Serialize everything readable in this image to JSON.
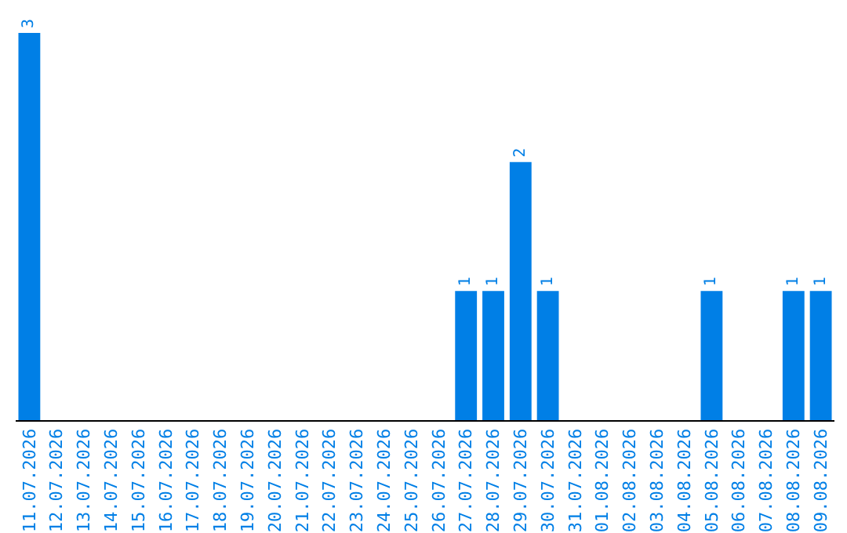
{
  "chart_data": {
    "type": "bar",
    "categories": [
      "11.07.2026",
      "12.07.2026",
      "13.07.2026",
      "14.07.2026",
      "15.07.2026",
      "16.07.2026",
      "17.07.2026",
      "18.07.2026",
      "19.07.2026",
      "20.07.2026",
      "21.07.2026",
      "22.07.2026",
      "23.07.2026",
      "24.07.2026",
      "25.07.2026",
      "26.07.2026",
      "27.07.2026",
      "28.07.2026",
      "29.07.2026",
      "30.07.2026",
      "31.07.2026",
      "01.08.2026",
      "02.08.2026",
      "03.08.2026",
      "04.08.2026",
      "05.08.2026",
      "06.08.2026",
      "07.08.2026",
      "08.08.2026",
      "09.08.2026"
    ],
    "values": [
      3,
      0,
      0,
      0,
      0,
      0,
      0,
      0,
      0,
      0,
      0,
      0,
      0,
      0,
      0,
      0,
      1,
      1,
      2,
      1,
      0,
      0,
      0,
      0,
      0,
      1,
      0,
      0,
      1,
      1
    ],
    "value_labels": [
      "3",
      null,
      null,
      null,
      null,
      null,
      null,
      null,
      null,
      null,
      null,
      null,
      null,
      null,
      null,
      null,
      "1",
      "1",
      "2",
      "1",
      null,
      null,
      null,
      null,
      null,
      "1",
      null,
      null,
      "1",
      "1"
    ],
    "color": "#007fe6",
    "grid": false,
    "legend": false,
    "tick_labels": "x"
  }
}
